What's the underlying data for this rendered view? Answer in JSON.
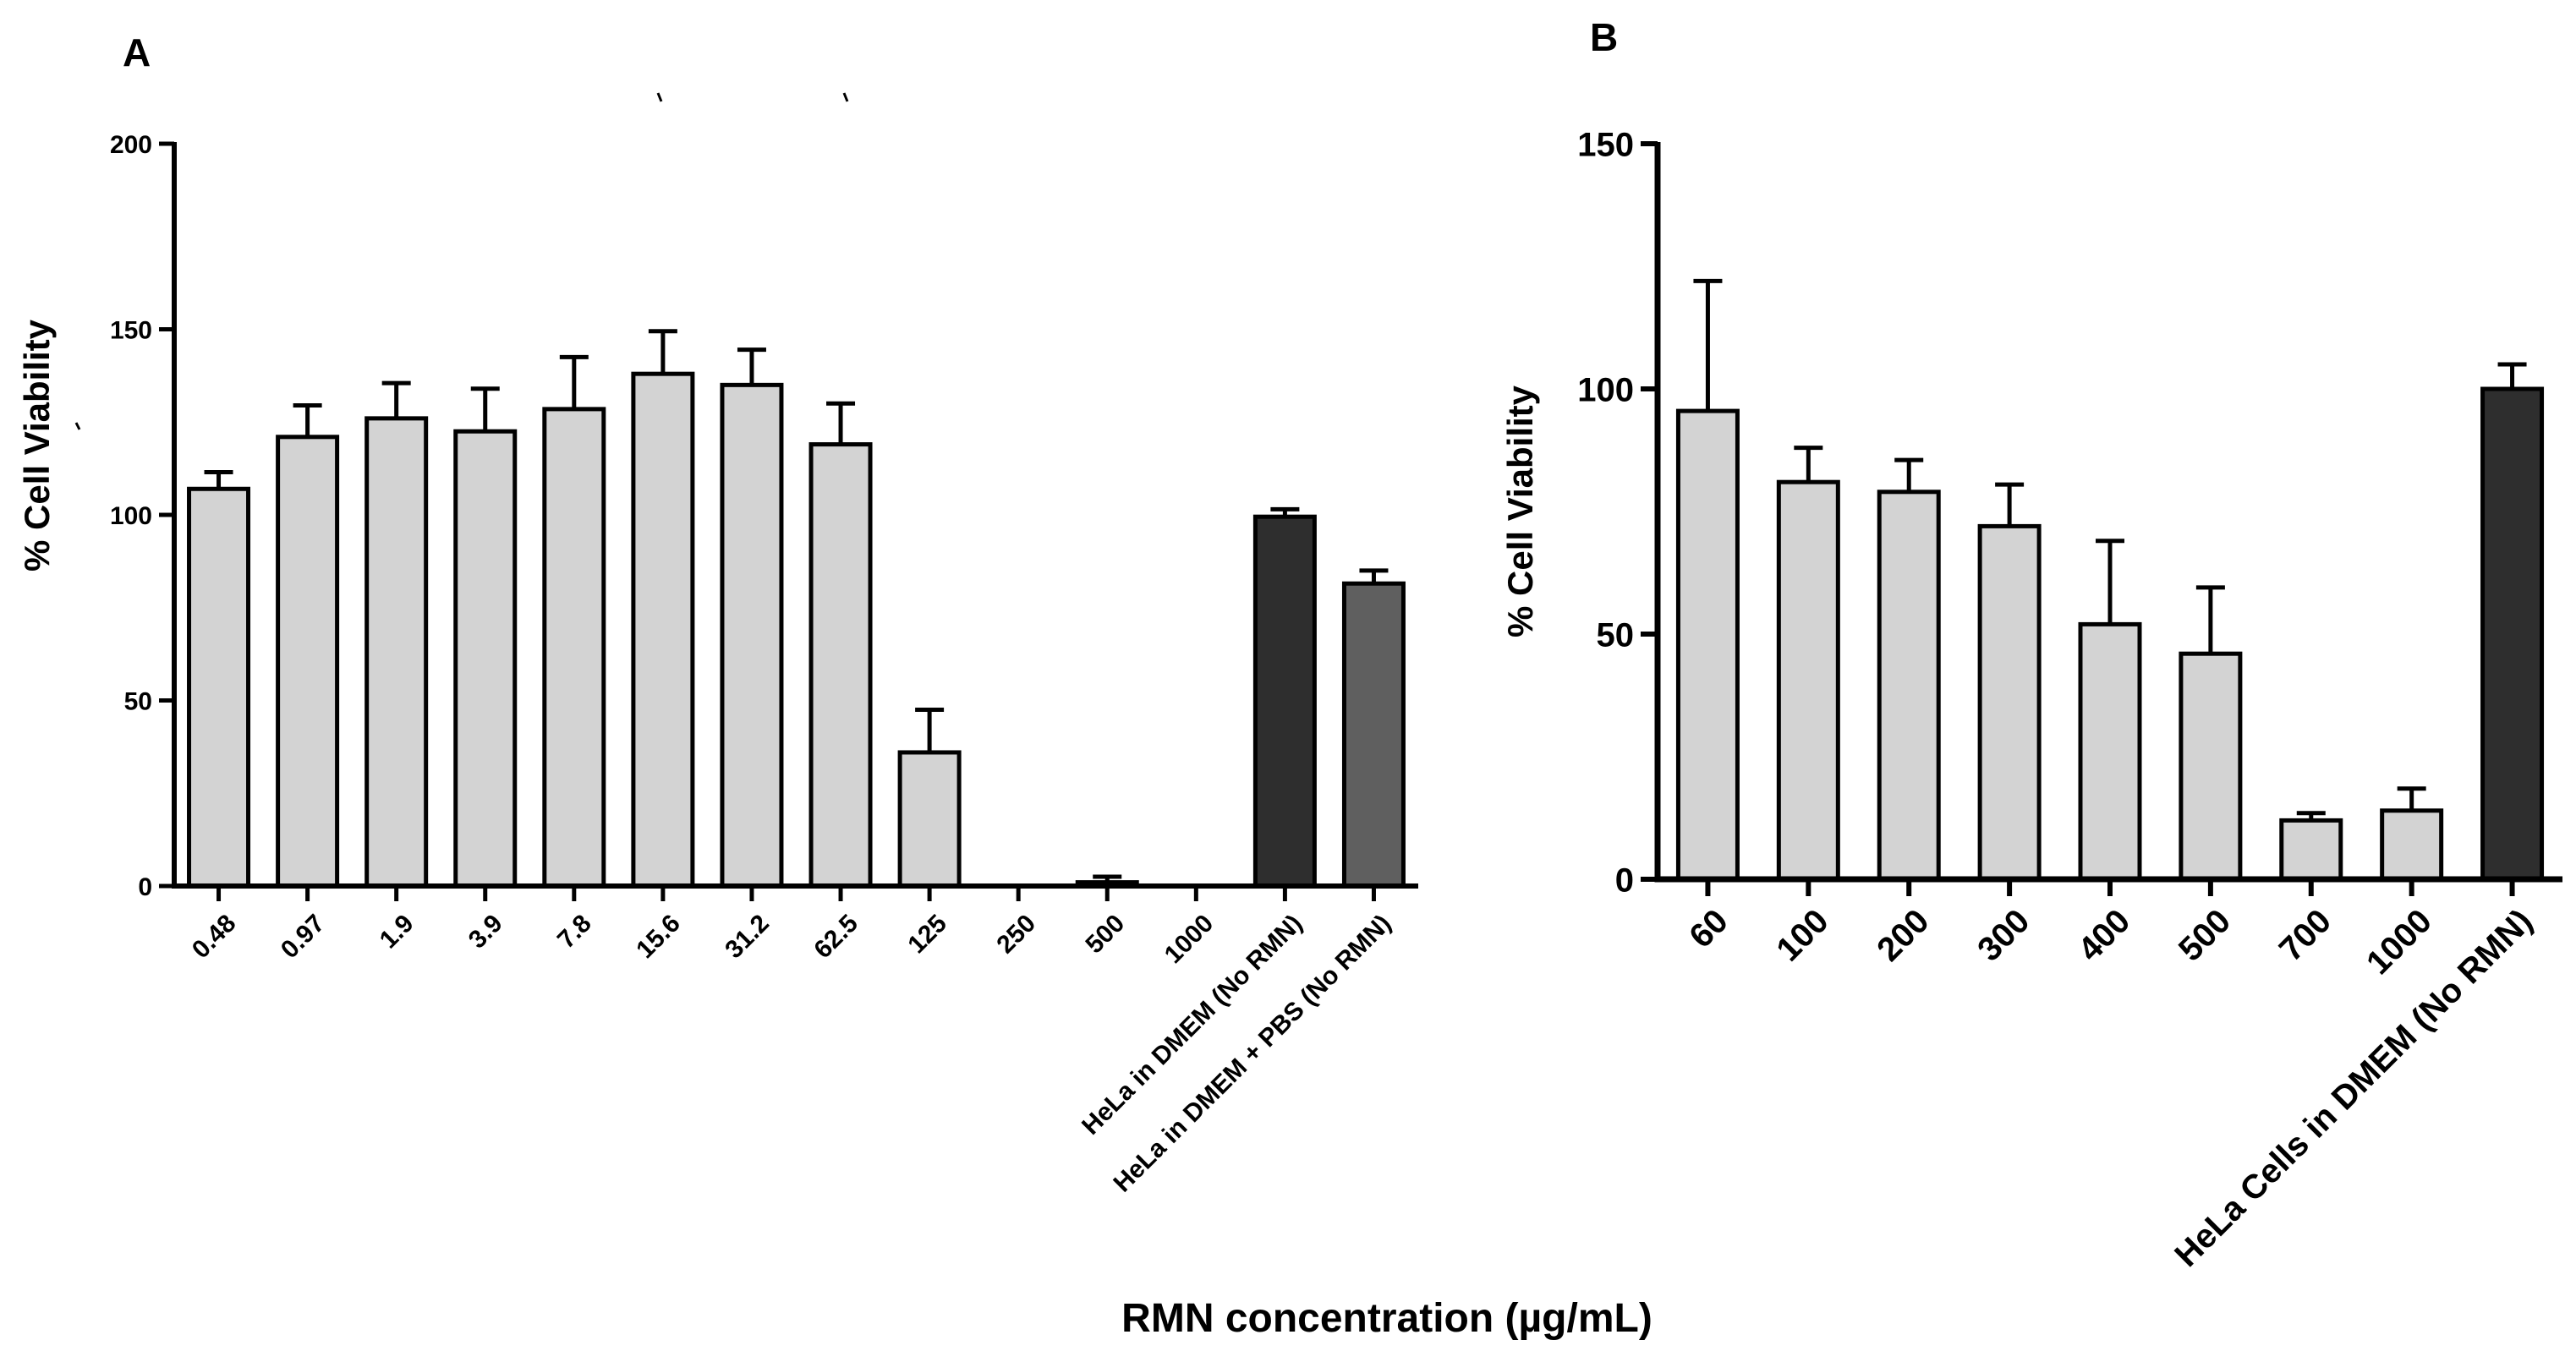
{
  "colors": {
    "axis": "#000000",
    "bar_light": "#d3d3d3",
    "bar_dark": "#2e2e2e",
    "bar_mid": "#5f5f5f",
    "error": "#000000"
  },
  "figure": {
    "shared_xlabel": "RMN concentration (µg/mL)"
  },
  "chart_data": [
    {
      "panel": "A",
      "type": "bar",
      "title": "",
      "xlabel": "RMN concentration (µg/mL)",
      "ylabel": "% Cell Viability",
      "ylim": [
        0,
        200
      ],
      "yticks": [
        0,
        50,
        100,
        150,
        200
      ],
      "categories": [
        "0.48",
        "0.97",
        "1.9",
        "3.9",
        "7.8",
        "15.6",
        "31.2",
        "62.5",
        "125",
        "250",
        "500",
        "1000",
        "HeLa in DMEM (No RMN)",
        "HeLa in DMEM + PBS (No RMN)"
      ],
      "values": [
        107,
        121,
        126,
        122.5,
        128.5,
        138,
        135,
        119,
        36,
        0,
        1,
        0,
        99.5,
        81.5
      ],
      "errors": [
        4.5,
        8.5,
        9.5,
        11.5,
        14,
        11.5,
        9.5,
        11,
        11.5,
        0,
        1.5,
        0,
        2,
        3.5
      ],
      "bar_colors": [
        "light",
        "light",
        "light",
        "light",
        "light",
        "light",
        "light",
        "light",
        "light",
        "light",
        "light",
        "light",
        "dark",
        "mid"
      ]
    },
    {
      "panel": "B",
      "type": "bar",
      "title": "",
      "xlabel": "RMN concentration (µg/mL)",
      "ylabel": "% Cell Viability",
      "ylim": [
        0,
        150
      ],
      "yticks": [
        0,
        50,
        100,
        150
      ],
      "categories": [
        "60",
        "100",
        "200",
        "300",
        "400",
        "500",
        "700",
        "1000",
        "HeLa Cells in DMEM (No RMN)"
      ],
      "values": [
        95.5,
        81,
        79,
        72,
        52,
        46,
        12,
        14,
        100
      ],
      "errors": [
        26.5,
        7,
        6.5,
        8.5,
        17,
        13.5,
        1.5,
        4.5,
        5
      ],
      "bar_colors": [
        "light",
        "light",
        "light",
        "light",
        "light",
        "light",
        "light",
        "light",
        "dark"
      ]
    }
  ]
}
